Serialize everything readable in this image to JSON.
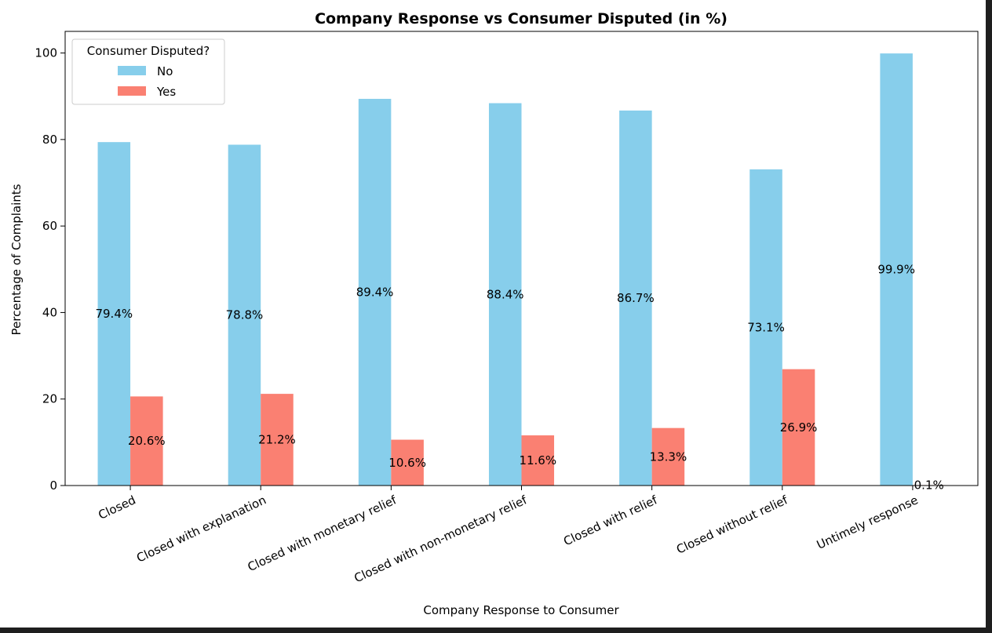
{
  "chart_data": {
    "type": "bar",
    "title": "Company Response vs Consumer Disputed (in %)",
    "xlabel": "Company Response to Consumer",
    "ylabel": "Percentage of Complaints",
    "ylim": [
      0,
      105
    ],
    "yticks": [
      0,
      20,
      40,
      60,
      80,
      100
    ],
    "grid": false,
    "legend": {
      "title": "Consumer Disputed?",
      "placement": "top-left"
    },
    "categories": [
      "Closed",
      "Closed with explanation",
      "Closed with monetary relief",
      "Closed with non-monetary relief",
      "Closed with relief",
      "Closed without relief",
      "Untimely response"
    ],
    "series": [
      {
        "name": "No",
        "color": "#87ceeb",
        "values": [
          79.4,
          78.8,
          89.4,
          88.4,
          86.7,
          73.1,
          99.9
        ],
        "labels": [
          "79.4%",
          "78.8%",
          "89.4%",
          "88.4%",
          "86.7%",
          "73.1%",
          "99.9%"
        ]
      },
      {
        "name": "Yes",
        "color": "#fa8072",
        "values": [
          20.6,
          21.2,
          10.6,
          11.6,
          13.3,
          26.9,
          0.1
        ],
        "labels": [
          "20.6%",
          "21.2%",
          "10.6%",
          "11.6%",
          "13.3%",
          "26.9%",
          "0.1%"
        ]
      }
    ]
  }
}
